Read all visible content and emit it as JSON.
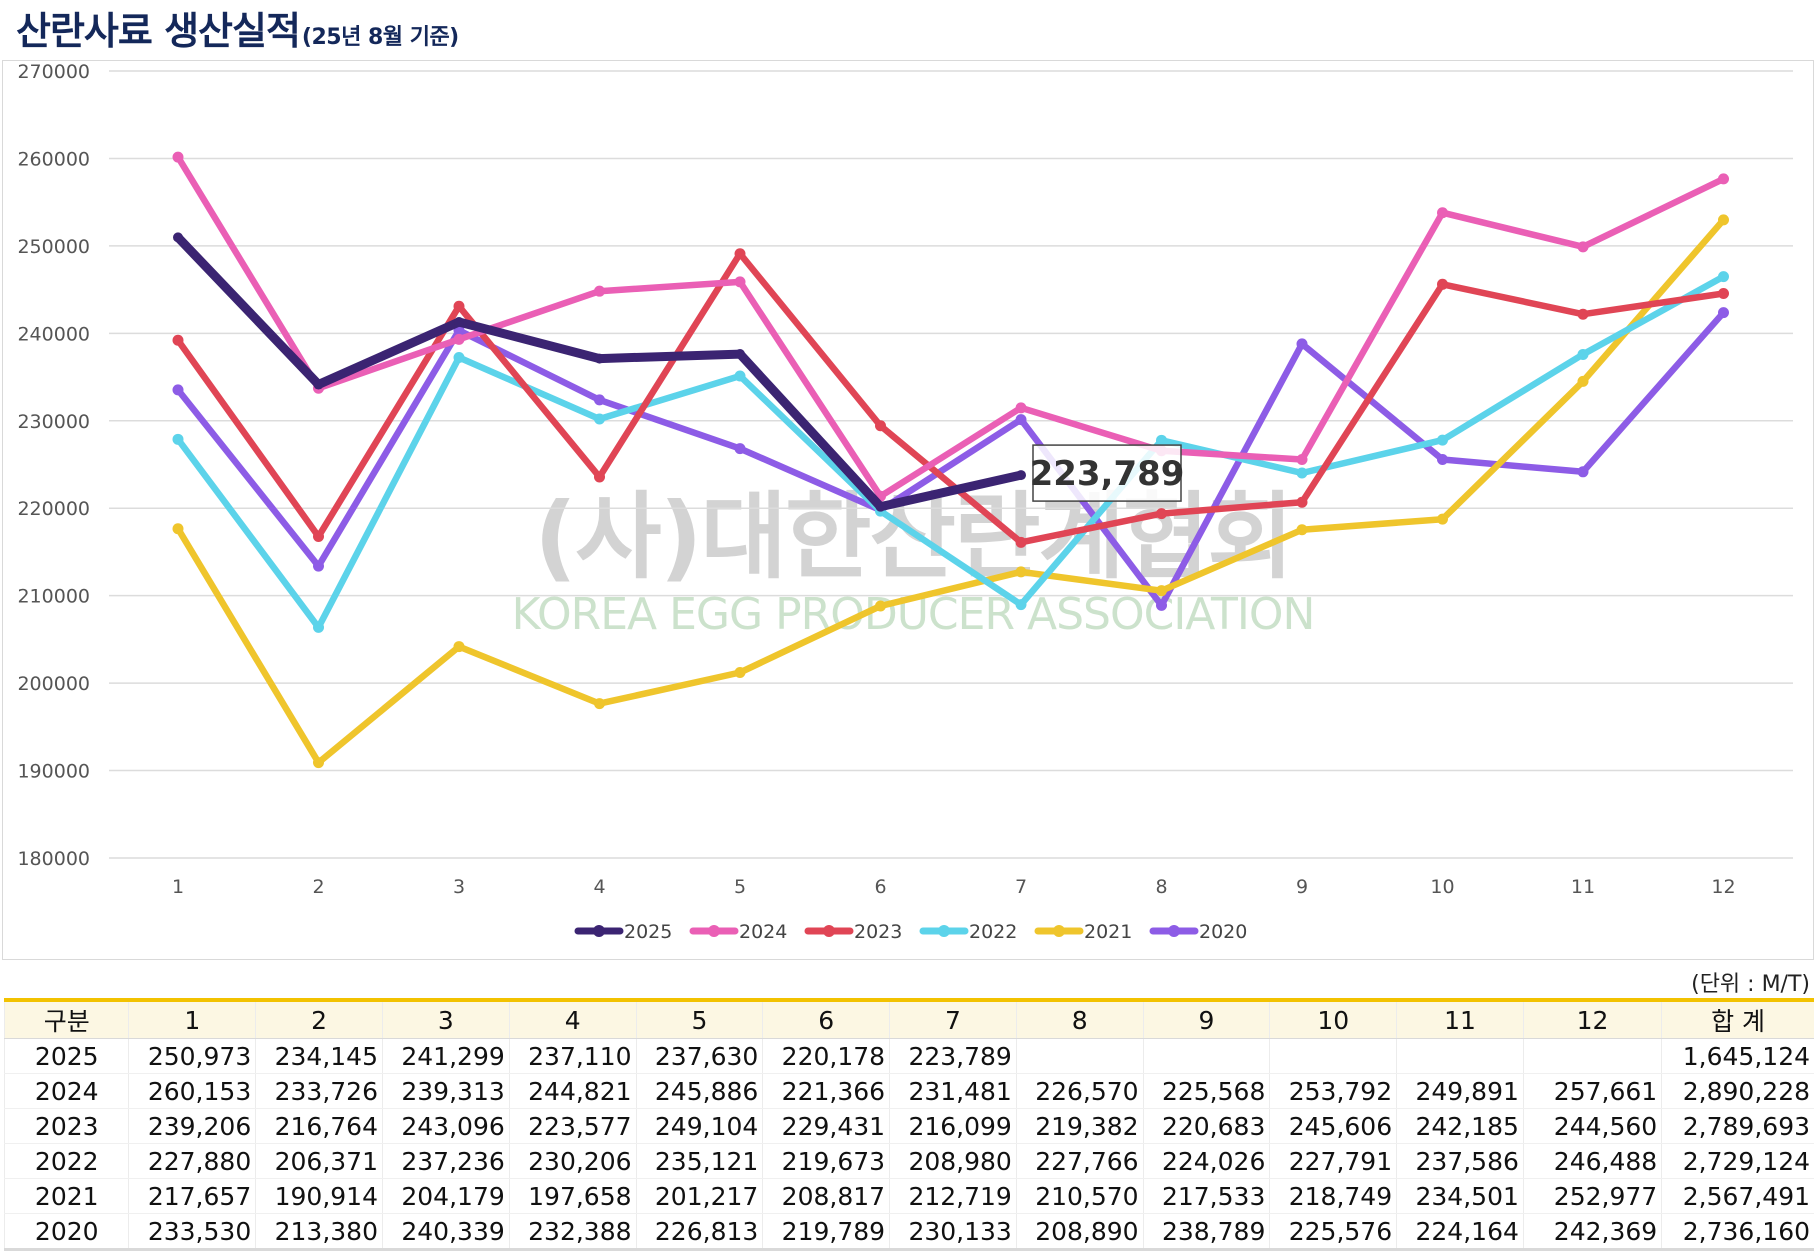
{
  "title": {
    "main": "산란사료 생산실적",
    "sub": "(25년 8월 기준)"
  },
  "chart_data": {
    "type": "line",
    "x": [
      1,
      2,
      3,
      4,
      5,
      6,
      7,
      8,
      9,
      10,
      11,
      12
    ],
    "ylim": [
      180000,
      270000
    ],
    "yticks": [
      180000,
      190000,
      200000,
      210000,
      220000,
      230000,
      240000,
      250000,
      260000,
      270000
    ],
    "grid": true,
    "legend": "bottom",
    "series": [
      {
        "name": "2025",
        "color": "#3b2472",
        "values": [
          250973,
          234145,
          241299,
          237110,
          237630,
          220178,
          223789,
          null,
          null,
          null,
          null,
          null
        ]
      },
      {
        "name": "2024",
        "color": "#ea5fb5",
        "values": [
          260153,
          233726,
          239313,
          244821,
          245886,
          221366,
          231481,
          226570,
          225568,
          253792,
          249891,
          257661
        ]
      },
      {
        "name": "2023",
        "color": "#e04555",
        "values": [
          239206,
          216764,
          243096,
          223577,
          249104,
          229431,
          216099,
          219382,
          220683,
          245606,
          242185,
          244560
        ]
      },
      {
        "name": "2022",
        "color": "#5cd3ea",
        "values": [
          227880,
          206371,
          237236,
          230206,
          235121,
          219673,
          208980,
          227766,
          224026,
          227791,
          237586,
          246488
        ]
      },
      {
        "name": "2021",
        "color": "#efc52c",
        "values": [
          217657,
          190914,
          204179,
          197658,
          201217,
          208817,
          212719,
          210570,
          217533,
          218749,
          234501,
          252977
        ]
      },
      {
        "name": "2020",
        "color": "#8d5ce6",
        "values": [
          233530,
          213380,
          240339,
          232388,
          226813,
          219789,
          230133,
          208890,
          238789,
          225576,
          224164,
          242369
        ]
      }
    ],
    "annotation": {
      "text": "223,789",
      "series": "2025",
      "x": 7
    }
  },
  "watermark": {
    "line1": "(사)대한산란계협회",
    "line2": "KOREA EGG PRODUCER ASSOCIATION"
  },
  "unit_label": "(단위 : M/T)",
  "table": {
    "headers": [
      "구분",
      "1",
      "2",
      "3",
      "4",
      "5",
      "6",
      "7",
      "8",
      "9",
      "10",
      "11",
      "12",
      "합 계"
    ],
    "rows": [
      [
        "2025",
        "250,973",
        "234,145",
        "241,299",
        "237,110",
        "237,630",
        "220,178",
        "223,789",
        "",
        "",
        "",
        "",
        "",
        "1,645,124"
      ],
      [
        "2024",
        "260,153",
        "233,726",
        "239,313",
        "244,821",
        "245,886",
        "221,366",
        "231,481",
        "226,570",
        "225,568",
        "253,792",
        "249,891",
        "257,661",
        "2,890,228"
      ],
      [
        "2023",
        "239,206",
        "216,764",
        "243,096",
        "223,577",
        "249,104",
        "229,431",
        "216,099",
        "219,382",
        "220,683",
        "245,606",
        "242,185",
        "244,560",
        "2,789,693"
      ],
      [
        "2022",
        "227,880",
        "206,371",
        "237,236",
        "230,206",
        "235,121",
        "219,673",
        "208,980",
        "227,766",
        "224,026",
        "227,791",
        "237,586",
        "246,488",
        "2,729,124"
      ],
      [
        "2021",
        "217,657",
        "190,914",
        "204,179",
        "197,658",
        "201,217",
        "208,817",
        "212,719",
        "210,570",
        "217,533",
        "218,749",
        "234,501",
        "252,977",
        "2,567,491"
      ],
      [
        "2020",
        "233,530",
        "213,380",
        "240,339",
        "232,388",
        "226,813",
        "219,789",
        "230,133",
        "208,890",
        "238,789",
        "225,576",
        "224,164",
        "242,369",
        "2,736,160"
      ]
    ]
  }
}
